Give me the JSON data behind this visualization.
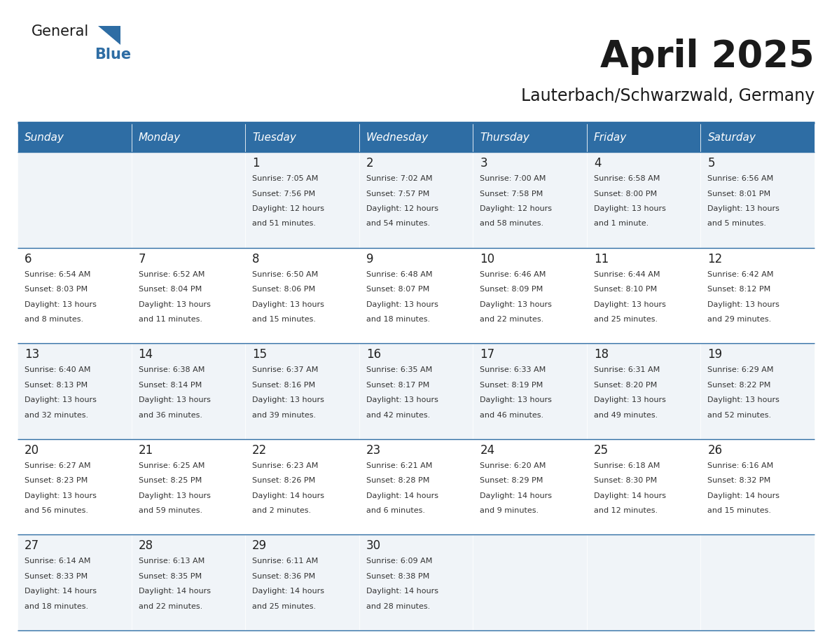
{
  "title": "April 2025",
  "subtitle": "Lauterbach/Schwarzwald, Germany",
  "header_bg": "#2E6DA4",
  "header_text_color": "#FFFFFF",
  "cell_bg_odd": "#F0F4F8",
  "cell_bg_even": "#FFFFFF",
  "day_number_color": "#222222",
  "text_color": "#333333",
  "line_color": "#2E6DA4",
  "days_of_week": [
    "Sunday",
    "Monday",
    "Tuesday",
    "Wednesday",
    "Thursday",
    "Friday",
    "Saturday"
  ],
  "weeks": [
    [
      {
        "day": null,
        "info": null
      },
      {
        "day": null,
        "info": null
      },
      {
        "day": 1,
        "info": "Sunrise: 7:05 AM\nSunset: 7:56 PM\nDaylight: 12 hours\nand 51 minutes."
      },
      {
        "day": 2,
        "info": "Sunrise: 7:02 AM\nSunset: 7:57 PM\nDaylight: 12 hours\nand 54 minutes."
      },
      {
        "day": 3,
        "info": "Sunrise: 7:00 AM\nSunset: 7:58 PM\nDaylight: 12 hours\nand 58 minutes."
      },
      {
        "day": 4,
        "info": "Sunrise: 6:58 AM\nSunset: 8:00 PM\nDaylight: 13 hours\nand 1 minute."
      },
      {
        "day": 5,
        "info": "Sunrise: 6:56 AM\nSunset: 8:01 PM\nDaylight: 13 hours\nand 5 minutes."
      }
    ],
    [
      {
        "day": 6,
        "info": "Sunrise: 6:54 AM\nSunset: 8:03 PM\nDaylight: 13 hours\nand 8 minutes."
      },
      {
        "day": 7,
        "info": "Sunrise: 6:52 AM\nSunset: 8:04 PM\nDaylight: 13 hours\nand 11 minutes."
      },
      {
        "day": 8,
        "info": "Sunrise: 6:50 AM\nSunset: 8:06 PM\nDaylight: 13 hours\nand 15 minutes."
      },
      {
        "day": 9,
        "info": "Sunrise: 6:48 AM\nSunset: 8:07 PM\nDaylight: 13 hours\nand 18 minutes."
      },
      {
        "day": 10,
        "info": "Sunrise: 6:46 AM\nSunset: 8:09 PM\nDaylight: 13 hours\nand 22 minutes."
      },
      {
        "day": 11,
        "info": "Sunrise: 6:44 AM\nSunset: 8:10 PM\nDaylight: 13 hours\nand 25 minutes."
      },
      {
        "day": 12,
        "info": "Sunrise: 6:42 AM\nSunset: 8:12 PM\nDaylight: 13 hours\nand 29 minutes."
      }
    ],
    [
      {
        "day": 13,
        "info": "Sunrise: 6:40 AM\nSunset: 8:13 PM\nDaylight: 13 hours\nand 32 minutes."
      },
      {
        "day": 14,
        "info": "Sunrise: 6:38 AM\nSunset: 8:14 PM\nDaylight: 13 hours\nand 36 minutes."
      },
      {
        "day": 15,
        "info": "Sunrise: 6:37 AM\nSunset: 8:16 PM\nDaylight: 13 hours\nand 39 minutes."
      },
      {
        "day": 16,
        "info": "Sunrise: 6:35 AM\nSunset: 8:17 PM\nDaylight: 13 hours\nand 42 minutes."
      },
      {
        "day": 17,
        "info": "Sunrise: 6:33 AM\nSunset: 8:19 PM\nDaylight: 13 hours\nand 46 minutes."
      },
      {
        "day": 18,
        "info": "Sunrise: 6:31 AM\nSunset: 8:20 PM\nDaylight: 13 hours\nand 49 minutes."
      },
      {
        "day": 19,
        "info": "Sunrise: 6:29 AM\nSunset: 8:22 PM\nDaylight: 13 hours\nand 52 minutes."
      }
    ],
    [
      {
        "day": 20,
        "info": "Sunrise: 6:27 AM\nSunset: 8:23 PM\nDaylight: 13 hours\nand 56 minutes."
      },
      {
        "day": 21,
        "info": "Sunrise: 6:25 AM\nSunset: 8:25 PM\nDaylight: 13 hours\nand 59 minutes."
      },
      {
        "day": 22,
        "info": "Sunrise: 6:23 AM\nSunset: 8:26 PM\nDaylight: 14 hours\nand 2 minutes."
      },
      {
        "day": 23,
        "info": "Sunrise: 6:21 AM\nSunset: 8:28 PM\nDaylight: 14 hours\nand 6 minutes."
      },
      {
        "day": 24,
        "info": "Sunrise: 6:20 AM\nSunset: 8:29 PM\nDaylight: 14 hours\nand 9 minutes."
      },
      {
        "day": 25,
        "info": "Sunrise: 6:18 AM\nSunset: 8:30 PM\nDaylight: 14 hours\nand 12 minutes."
      },
      {
        "day": 26,
        "info": "Sunrise: 6:16 AM\nSunset: 8:32 PM\nDaylight: 14 hours\nand 15 minutes."
      }
    ],
    [
      {
        "day": 27,
        "info": "Sunrise: 6:14 AM\nSunset: 8:33 PM\nDaylight: 14 hours\nand 18 minutes."
      },
      {
        "day": 28,
        "info": "Sunrise: 6:13 AM\nSunset: 8:35 PM\nDaylight: 14 hours\nand 22 minutes."
      },
      {
        "day": 29,
        "info": "Sunrise: 6:11 AM\nSunset: 8:36 PM\nDaylight: 14 hours\nand 25 minutes."
      },
      {
        "day": 30,
        "info": "Sunrise: 6:09 AM\nSunset: 8:38 PM\nDaylight: 14 hours\nand 28 minutes."
      },
      {
        "day": null,
        "info": null
      },
      {
        "day": null,
        "info": null
      },
      {
        "day": null,
        "info": null
      }
    ]
  ]
}
